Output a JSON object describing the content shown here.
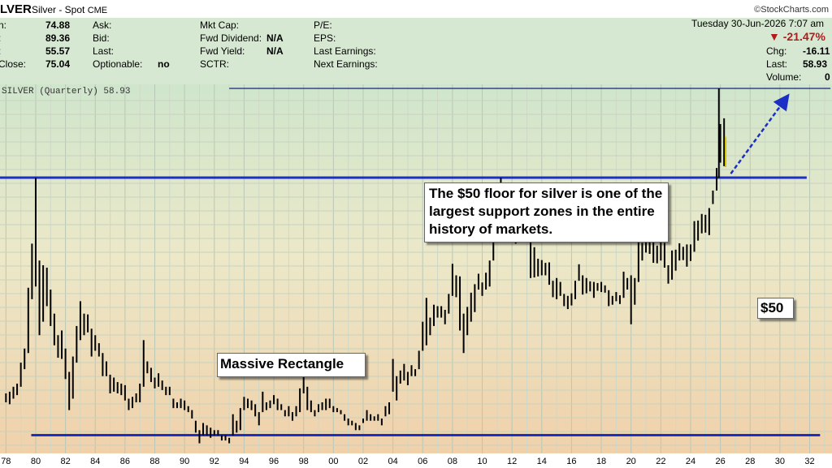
{
  "header": {
    "symbol": "LVER",
    "description": "Silver - Spot",
    "exchange": "CME",
    "brand": "©StockCharts.com",
    "date": "Tuesday  30-Jun-2026  7:07 am"
  },
  "info": {
    "col1": [
      {
        "label": "n:",
        "value": "74.88"
      },
      {
        "label": ":",
        "value": "89.36"
      },
      {
        "label": ":",
        "value": "55.57"
      },
      {
        "label": " Close:",
        "value": "75.04"
      }
    ],
    "col2": [
      {
        "label": "Ask:",
        "value": ""
      },
      {
        "label": "Bid:",
        "value": ""
      },
      {
        "label": "Last:",
        "value": ""
      },
      {
        "label": "Optionable:",
        "value": "no"
      }
    ],
    "col3": [
      {
        "label": "Mkt Cap:",
        "value": ""
      },
      {
        "label": "Fwd Dividend:",
        "value": "N/A"
      },
      {
        "label": "Fwd Yield:",
        "value": "N/A"
      },
      {
        "label": "SCTR:",
        "value": ""
      }
    ],
    "col4": [
      {
        "label": "P/E:"
      },
      {
        "label": "EPS:"
      },
      {
        "label": "Last Earnings:"
      },
      {
        "label": "Next Earnings:"
      }
    ],
    "change_pct": "▼ -21.47%",
    "chg_label": "Chg:",
    "chg_value": "-16.11",
    "last_label": "Last:",
    "last_value": "58.93",
    "volume_label": "Volume:",
    "volume_value": "0"
  },
  "chart_data": {
    "type": "bar",
    "title": "SILVER (Quarterly) 58.93",
    "x_tick_labels": [
      "78",
      "80",
      "82",
      "84",
      "86",
      "88",
      "90",
      "92",
      "94",
      "96",
      "98",
      "00",
      "02",
      "04",
      "06",
      "08",
      "10",
      "12",
      "14",
      "16",
      "18",
      "20",
      "22",
      "24",
      "26",
      "28",
      "30",
      "32"
    ],
    "xlim": [
      1977.6,
      2033.5
    ],
    "ylim": [
      3.5,
      122
    ],
    "bars": [
      [
        1978.0,
        5.4,
        5.9
      ],
      [
        1978.25,
        5.3,
        6.0
      ],
      [
        1978.5,
        5.6,
        6.3
      ],
      [
        1978.75,
        5.8,
        6.5
      ],
      [
        1979.0,
        6.3,
        8.0
      ],
      [
        1979.25,
        7.5,
        9.2
      ],
      [
        1979.5,
        8.8,
        16.8
      ],
      [
        1979.75,
        15.0,
        26.0
      ],
      [
        1980.0,
        17.0,
        50.0
      ],
      [
        1980.25,
        10.5,
        22.0
      ],
      [
        1980.5,
        12.0,
        21.0
      ],
      [
        1980.75,
        14.0,
        20.5
      ],
      [
        1981.0,
        11.5,
        16.5
      ],
      [
        1981.25,
        9.5,
        13.0
      ],
      [
        1981.5,
        8.4,
        10.5
      ],
      [
        1981.75,
        8.3,
        11.0
      ],
      [
        1982.0,
        6.8,
        9.2
      ],
      [
        1982.25,
        5.0,
        7.3
      ],
      [
        1982.5,
        5.6,
        8.5
      ],
      [
        1982.75,
        8.0,
        11.5
      ],
      [
        1983.0,
        10.0,
        14.7
      ],
      [
        1983.25,
        10.5,
        13.0
      ],
      [
        1983.5,
        10.8,
        12.9
      ],
      [
        1983.75,
        8.5,
        11.2
      ],
      [
        1984.0,
        9.0,
        10.5
      ],
      [
        1984.25,
        8.5,
        9.7
      ],
      [
        1984.5,
        7.0,
        8.8
      ],
      [
        1984.75,
        7.0,
        8.1
      ],
      [
        1985.0,
        5.9,
        7.1
      ],
      [
        1985.25,
        6.0,
        6.9
      ],
      [
        1985.5,
        5.9,
        6.6
      ],
      [
        1985.75,
        5.8,
        6.5
      ],
      [
        1986.0,
        5.5,
        6.4
      ],
      [
        1986.25,
        5.0,
        5.6
      ],
      [
        1986.5,
        5.1,
        5.7
      ],
      [
        1986.75,
        5.4,
        5.9
      ],
      [
        1987.0,
        5.4,
        6.5
      ],
      [
        1987.25,
        6.3,
        10.0
      ],
      [
        1987.5,
        7.2,
        8.1
      ],
      [
        1987.75,
        6.6,
        7.6
      ],
      [
        1988.0,
        6.2,
        6.9
      ],
      [
        1988.25,
        6.3,
        7.2
      ],
      [
        1988.5,
        6.1,
        6.7
      ],
      [
        1988.75,
        5.8,
        6.3
      ],
      [
        1989.0,
        5.8,
        6.3
      ],
      [
        1989.25,
        5.1,
        5.6
      ],
      [
        1989.5,
        5.1,
        5.4
      ],
      [
        1989.75,
        5.1,
        5.6
      ],
      [
        1990.0,
        5.0,
        5.5
      ],
      [
        1990.25,
        4.9,
        5.2
      ],
      [
        1990.5,
        4.6,
        5.0
      ],
      [
        1990.75,
        4.0,
        4.5
      ],
      [
        1991.0,
        3.6,
        4.1
      ],
      [
        1991.25,
        3.9,
        4.4
      ],
      [
        1991.5,
        3.9,
        4.3
      ],
      [
        1991.75,
        3.8,
        4.2
      ],
      [
        1992.0,
        3.9,
        4.1
      ],
      [
        1992.25,
        3.9,
        4.1
      ],
      [
        1992.5,
        3.7,
        3.9
      ],
      [
        1992.75,
        3.7,
        3.9
      ],
      [
        1993.0,
        3.6,
        3.8
      ],
      [
        1993.25,
        3.9,
        4.8
      ],
      [
        1993.5,
        4.0,
        4.5
      ],
      [
        1993.75,
        4.1,
        5.1
      ],
      [
        1994.0,
        5.0,
        5.7
      ],
      [
        1994.25,
        5.1,
        5.6
      ],
      [
        1994.5,
        5.0,
        5.5
      ],
      [
        1994.75,
        4.7,
        5.3
      ],
      [
        1995.0,
        4.3,
        4.9
      ],
      [
        1995.25,
        4.9,
        6.0
      ],
      [
        1995.5,
        5.0,
        5.4
      ],
      [
        1995.75,
        5.1,
        5.5
      ],
      [
        1996.0,
        5.3,
        5.8
      ],
      [
        1996.25,
        5.0,
        5.6
      ],
      [
        1996.5,
        5.0,
        5.3
      ],
      [
        1996.75,
        4.7,
        5.0
      ],
      [
        1997.0,
        4.7,
        5.2
      ],
      [
        1997.25,
        4.5,
        4.9
      ],
      [
        1997.5,
        4.7,
        5.2
      ],
      [
        1997.75,
        4.9,
        6.2
      ],
      [
        1998.0,
        5.9,
        7.5
      ],
      [
        1998.25,
        5.0,
        6.3
      ],
      [
        1998.5,
        4.9,
        5.5
      ],
      [
        1998.75,
        4.7,
        5.0
      ],
      [
        1999.0,
        4.9,
        5.3
      ],
      [
        1999.25,
        5.0,
        5.4
      ],
      [
        1999.5,
        5.0,
        5.6
      ],
      [
        1999.75,
        5.1,
        5.6
      ],
      [
        2000.0,
        4.9,
        5.2
      ],
      [
        2000.25,
        4.9,
        5.1
      ],
      [
        2000.5,
        4.8,
        5.0
      ],
      [
        2000.75,
        4.5,
        4.8
      ],
      [
        2001.0,
        4.3,
        4.6
      ],
      [
        2001.25,
        4.3,
        4.5
      ],
      [
        2001.5,
        4.1,
        4.4
      ],
      [
        2001.75,
        4.1,
        4.3
      ],
      [
        2002.0,
        4.4,
        4.6
      ],
      [
        2002.25,
        4.5,
        5.0
      ],
      [
        2002.5,
        4.5,
        4.8
      ],
      [
        2002.75,
        4.5,
        4.7
      ],
      [
        2003.0,
        4.5,
        4.8
      ],
      [
        2003.25,
        4.3,
        4.6
      ],
      [
        2003.5,
        4.7,
        5.2
      ],
      [
        2003.75,
        4.8,
        5.4
      ],
      [
        2004.0,
        6.0,
        8.3
      ],
      [
        2004.25,
        5.5,
        7.0
      ],
      [
        2004.5,
        6.5,
        7.4
      ],
      [
        2004.75,
        6.7,
        7.9
      ],
      [
        2005.0,
        6.4,
        7.3
      ],
      [
        2005.25,
        7.0,
        7.8
      ],
      [
        2005.5,
        7.0,
        7.5
      ],
      [
        2005.75,
        7.5,
        9.0
      ],
      [
        2006.0,
        9.0,
        12.0
      ],
      [
        2006.25,
        9.5,
        15.2
      ],
      [
        2006.5,
        10.5,
        12.5
      ],
      [
        2006.75,
        11.5,
        14.2
      ],
      [
        2007.0,
        12.5,
        14.0
      ],
      [
        2007.25,
        12.5,
        14.0
      ],
      [
        2007.5,
        11.7,
        13.5
      ],
      [
        2007.75,
        13.0,
        15.8
      ],
      [
        2008.0,
        15.5,
        21.3
      ],
      [
        2008.25,
        15.3,
        19.0
      ],
      [
        2008.5,
        11.0,
        18.8
      ],
      [
        2008.75,
        8.8,
        13.0
      ],
      [
        2009.0,
        10.5,
        13.9
      ],
      [
        2009.25,
        12.0,
        16.0
      ],
      [
        2009.5,
        13.2,
        17.4
      ],
      [
        2009.75,
        16.5,
        19.3
      ],
      [
        2010.0,
        15.5,
        17.7
      ],
      [
        2010.25,
        16.5,
        19.5
      ],
      [
        2010.5,
        17.0,
        22.0
      ],
      [
        2010.75,
        22.0,
        30.8
      ],
      [
        2011.0,
        26.5,
        37.8
      ],
      [
        2011.25,
        33.5,
        50.0
      ],
      [
        2011.5,
        26.3,
        43.0
      ],
      [
        2011.75,
        28.0,
        35.5
      ],
      [
        2012.0,
        30.0,
        37.4
      ],
      [
        2012.25,
        26.0,
        32.0
      ],
      [
        2012.5,
        26.5,
        35.0
      ],
      [
        2012.75,
        31.5,
        34.5
      ],
      [
        2013.0,
        28.0,
        32.4
      ],
      [
        2013.25,
        18.5,
        28.5
      ],
      [
        2013.5,
        18.6,
        25.1
      ],
      [
        2013.75,
        18.8,
        22.4
      ],
      [
        2014.0,
        19.0,
        22.1
      ],
      [
        2014.25,
        19.0,
        21.5
      ],
      [
        2014.5,
        17.3,
        21.6
      ],
      [
        2014.75,
        15.3,
        18.0
      ],
      [
        2015.0,
        15.0,
        18.5
      ],
      [
        2015.25,
        15.5,
        17.8
      ],
      [
        2015.5,
        14.0,
        15.8
      ],
      [
        2015.75,
        13.6,
        15.5
      ],
      [
        2016.0,
        14.1,
        15.9
      ],
      [
        2016.25,
        15.0,
        18.0
      ],
      [
        2016.5,
        18.0,
        21.2
      ],
      [
        2016.75,
        15.7,
        19.0
      ],
      [
        2017.0,
        15.9,
        18.5
      ],
      [
        2017.25,
        16.2,
        17.9
      ],
      [
        2017.5,
        15.2,
        17.8
      ],
      [
        2017.75,
        16.3,
        17.6
      ],
      [
        2018.0,
        16.1,
        17.8
      ],
      [
        2018.25,
        16.0,
        17.2
      ],
      [
        2018.5,
        14.0,
        16.4
      ],
      [
        2018.75,
        14.2,
        15.5
      ],
      [
        2019.0,
        14.7,
        16.1
      ],
      [
        2019.25,
        14.3,
        15.6
      ],
      [
        2019.5,
        15.2,
        19.7
      ],
      [
        2019.75,
        16.5,
        18.5
      ],
      [
        2020.0,
        11.7,
        19.0
      ],
      [
        2020.25,
        14.2,
        18.5
      ],
      [
        2020.5,
        17.8,
        29.9
      ],
      [
        2020.75,
        22.0,
        26.2
      ],
      [
        2021.0,
        23.8,
        30.1
      ],
      [
        2021.25,
        23.5,
        28.7
      ],
      [
        2021.5,
        21.5,
        26.7
      ],
      [
        2021.75,
        21.4,
        25.5
      ],
      [
        2022.0,
        22.0,
        27.0
      ],
      [
        2022.25,
        20.5,
        26.2
      ],
      [
        2022.5,
        17.5,
        21.0
      ],
      [
        2022.75,
        18.2,
        24.3
      ],
      [
        2023.0,
        19.9,
        24.5
      ],
      [
        2023.25,
        22.0,
        26.1
      ],
      [
        2023.5,
        22.1,
        25.2
      ],
      [
        2023.75,
        20.7,
        25.8
      ],
      [
        2024.0,
        21.9,
        25.8
      ],
      [
        2024.25,
        24.0,
        32.5
      ],
      [
        2024.5,
        26.8,
        32.7
      ],
      [
        2024.75,
        28.8,
        34.9
      ],
      [
        2025.0,
        29.0,
        34.6
      ],
      [
        2025.25,
        28.3,
        37.0
      ],
      [
        2025.5,
        38.5,
        44.0
      ],
      [
        2025.75,
        44.0,
        55.0
      ],
      [
        2025.9,
        50.0,
        121.0
      ],
      [
        2026.0,
        58.0,
        85.0
      ],
      [
        2026.25,
        56.0,
        90.0
      ],
      [
        2026.35,
        55.5,
        75.0
      ]
    ],
    "last_bar_color": "#d4c400",
    "horizontal_lines": [
      {
        "kind": "top",
        "x_from": 1993.0,
        "x_to": 2033.4,
        "y": 121.0,
        "color": "#1a237e"
      },
      {
        "kind": "support",
        "x_from": 1977.6,
        "x_to": 2031.8,
        "y": 50.0,
        "color": "#1c2fc4"
      },
      {
        "kind": "bottom",
        "x_from": 1979.7,
        "x_to": 2032.7,
        "y": 3.9,
        "color": "#1c2fc4"
      }
    ],
    "trend_arrow": {
      "from": [
        2026.7,
        52.0
      ],
      "to": [
        2030.4,
        109.5
      ],
      "color": "#1c2fc4"
    },
    "annotations": [
      {
        "text": "The $50 floor for silver is one of the largest support zones in the entire history of markets."
      },
      {
        "text": "$50"
      },
      {
        "text": "Massive Rectangle"
      }
    ],
    "grid": true
  }
}
